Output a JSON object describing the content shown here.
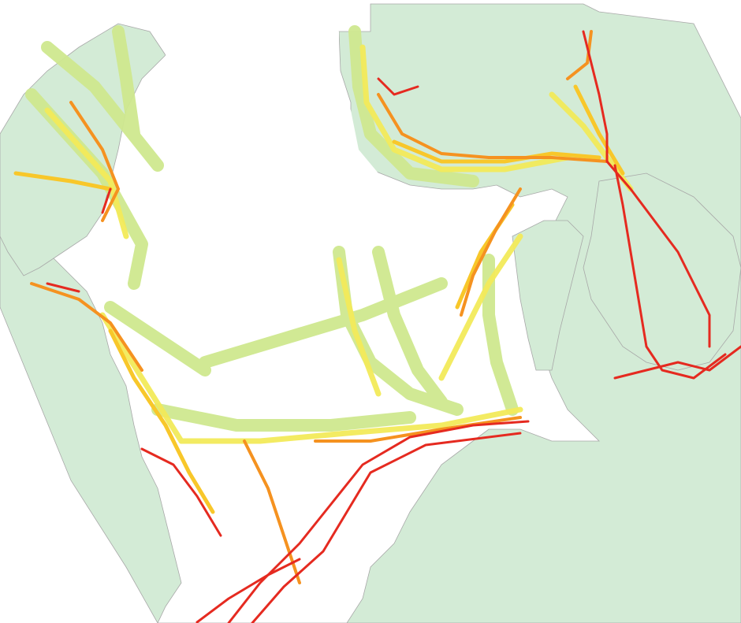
{
  "map": {
    "colors": {
      "background": "#ffffff",
      "land": "#d3ebd6",
      "coastline": "#a8a8a8",
      "density_low": "#cfe88f",
      "density_medium_low": "#f2ea5a",
      "density_medium": "#f8c72a",
      "density_high": "#f59220",
      "density_very_high": "#e52a20"
    },
    "layers": [
      "land",
      "coastline",
      "vessel-traffic-density"
    ],
    "legend": "none",
    "labels": "none"
  }
}
